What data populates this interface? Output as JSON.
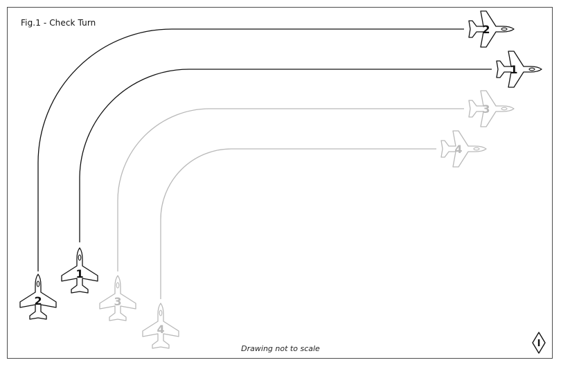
{
  "figure": {
    "title": "Fig.1 - Check Turn",
    "note": "Drawing not to scale",
    "logo_mark": "I"
  },
  "colors": {
    "active": "#111111",
    "inactive": "#b9b9b9",
    "frame": "#4a4a4a"
  },
  "aircraft": [
    {
      "id": "2",
      "label": "2",
      "state": "active"
    },
    {
      "id": "1",
      "label": "1",
      "state": "active"
    },
    {
      "id": "3",
      "label": "3",
      "state": "inactive"
    },
    {
      "id": "4",
      "label": "4",
      "state": "inactive"
    }
  ],
  "icons": {
    "aircraft": "jet-silhouette-icon",
    "logo": "diamond-logo-icon"
  }
}
